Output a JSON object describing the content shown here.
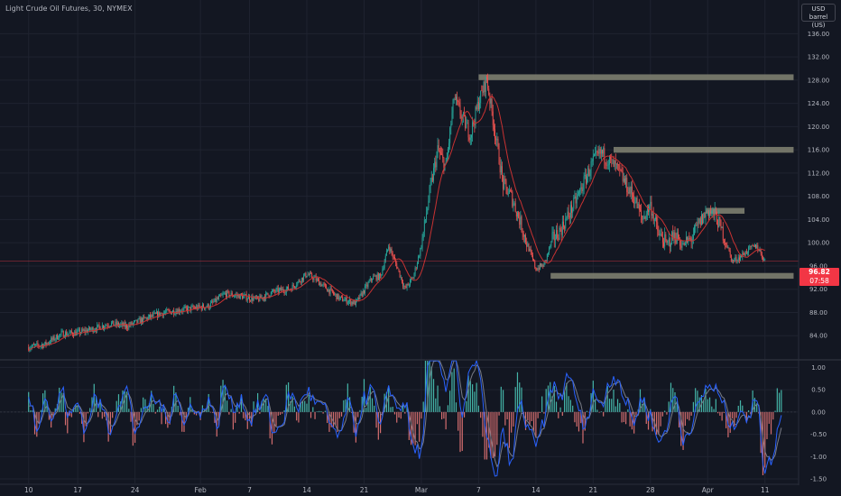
{
  "chart_title": "Light Crude Oil Futures, 30, NYMEX",
  "unit": {
    "currency": "USD",
    "measure": "barrel (US)"
  },
  "last_price": {
    "value": "96.82",
    "countdown": "07:58",
    "color": "#f23645"
  },
  "colors": {
    "background": "#131722",
    "candle_up": "#26a69a",
    "candle_down": "#ef5350",
    "moving_average": "#c83232",
    "zone": "#7d7e6f",
    "osc_fast": "#2962ff",
    "osc_slow": "#787b86",
    "hist_pos": "#4dd0c0",
    "hist_neg": "#f77c7c"
  },
  "chart_data": [
    {
      "type": "candlestick",
      "title": "Light Crude Oil Futures, 30, NYMEX",
      "timeframe": "30",
      "y_unit": "USD / barrel (US)",
      "ylim": [
        80,
        139
      ],
      "y_ticks": [
        84,
        88,
        92,
        96,
        100,
        104,
        108,
        112,
        116,
        120,
        124,
        128,
        132,
        136
      ],
      "y_tick_labels": [
        "84.00",
        "88.00",
        "92.00",
        "96.00",
        "100.00",
        "104.00",
        "108.00",
        "112.00",
        "116.00",
        "120.00",
        "124.00",
        "128.00",
        "132.00",
        "136.00"
      ],
      "x_ticks": [
        "10",
        "17",
        "24",
        "Feb",
        "7",
        "14",
        "21",
        "Mar",
        "7",
        "14",
        "21",
        "28",
        "Apr",
        "11"
      ],
      "x_tick_index": [
        0,
        6,
        13,
        21,
        27,
        34,
        41,
        48,
        55,
        62,
        69,
        76,
        83,
        90
      ],
      "x_index_range": [
        -3.5,
        94
      ],
      "close_series": {
        "index": [
          0,
          2,
          4,
          6,
          8,
          10,
          12,
          14,
          16,
          18,
          20,
          22,
          24,
          26,
          28,
          30,
          32,
          34,
          35,
          36,
          38,
          40,
          41,
          42,
          43,
          44,
          45,
          46,
          47,
          48,
          49,
          50,
          51,
          52,
          53,
          54,
          55,
          56,
          57,
          58,
          59,
          60,
          61,
          62,
          63,
          64,
          65,
          66,
          67,
          68,
          69,
          70,
          71,
          72,
          73,
          74,
          75,
          76,
          77,
          78,
          79,
          80,
          81,
          82,
          83,
          84,
          85,
          86,
          87,
          88,
          89,
          90
        ],
        "values": [
          82,
          82.5,
          84.3,
          84.5,
          85.2,
          86.1,
          85.6,
          86.8,
          87.8,
          88.3,
          88.7,
          89.1,
          91.2,
          90.8,
          90.2,
          91.6,
          92.1,
          94.6,
          93.8,
          92.6,
          90.4,
          89.6,
          91.8,
          94,
          94.2,
          99.5,
          96,
          92,
          94,
          99.5,
          108.5,
          116,
          113,
          125,
          121.5,
          118.6,
          124.2,
          128.2,
          119,
          110,
          108,
          104,
          99.5,
          95.5,
          96.2,
          100.5,
          102.2,
          104.8,
          107.6,
          110.8,
          114,
          115.5,
          114,
          112.6,
          110,
          107.8,
          104,
          106.5,
          101.4,
          99.8,
          101.4,
          99.6,
          100.7,
          103.4,
          105.6,
          104.6,
          101,
          96.8,
          97.6,
          98.8,
          99.5,
          96.82
        ]
      },
      "zones": [
        {
          "price": 128.5,
          "from_index": 55,
          "to_index": 93.5
        },
        {
          "price": 116,
          "from_index": 71.5,
          "to_index": 93.5
        },
        {
          "price": 105.5,
          "from_index": 82.8,
          "to_index": 87.5
        },
        {
          "price": 94.3,
          "from_index": 63.8,
          "to_index": 93.5
        }
      ],
      "last_price_line": 96.82
    },
    {
      "type": "oscillator",
      "ylim": [
        -1.6,
        1.15
      ],
      "y_ticks": [
        -1.5,
        -1,
        -0.5,
        0,
        0.5,
        1
      ],
      "y_tick_labels": [
        "-1.50",
        "-1.00",
        "-0.50",
        "0.00",
        "0.50",
        "1.00"
      ],
      "signal_series": {
        "index": [
          0,
          1,
          2,
          3,
          4,
          5,
          6,
          7,
          8,
          9,
          10,
          11,
          12,
          13,
          14,
          15,
          16,
          17,
          18,
          19,
          20,
          21,
          22,
          23,
          24,
          25,
          26,
          27,
          28,
          29,
          30,
          31,
          32,
          33,
          34,
          35,
          36,
          37,
          38,
          39,
          40,
          41,
          42,
          43,
          44,
          45,
          46,
          47,
          48,
          49,
          50,
          51,
          52,
          53,
          54,
          55,
          56,
          57,
          58,
          59,
          60,
          61,
          62,
          63,
          64,
          65,
          66,
          67,
          68,
          69,
          70,
          71,
          72,
          73,
          74,
          75,
          76,
          77,
          78,
          79,
          80,
          81,
          82,
          83,
          84,
          85,
          86,
          87,
          88,
          89,
          90,
          91,
          92
        ],
        "values": [
          0.4,
          -0.3,
          0.3,
          -0.2,
          0.5,
          -0.1,
          0.2,
          -0.4,
          0.3,
          0.1,
          -0.4,
          0.2,
          0.5,
          -0.4,
          -0.1,
          0.3,
          0.2,
          -0.2,
          0.5,
          -0.3,
          0.2,
          -0.1,
          0.3,
          -0.3,
          0.6,
          0.1,
          0.3,
          -0.2,
          0.1,
          0.3,
          -0.5,
          -0.2,
          0.4,
          0.1,
          0.5,
          0.2,
          0.1,
          -0.3,
          -0.6,
          0.2,
          -0.4,
          0.3,
          0.5,
          -0.4,
          0.6,
          0.1,
          0.2,
          -0.8,
          -0.9,
          1.3,
          1.2,
          0.6,
          1.5,
          -0.1,
          0.9,
          1.1,
          -0.6,
          -1.5,
          -0.5,
          -1.2,
          0.2,
          -0.3,
          -0.8,
          -0.2,
          0.6,
          0.3,
          0.9,
          0.2,
          -0.4,
          0.5,
          0.1,
          0.7,
          0.8,
          0.2,
          -0.2,
          0.3,
          -0.1,
          -0.7,
          -0.3,
          0.4,
          -0.6,
          -0.3,
          0.2,
          0.6,
          0.5,
          0.1,
          -0.4,
          0.1,
          -0.2,
          0.4,
          -1.3,
          -1.0,
          0.0
        ]
      },
      "fast_series_note_free": true
    }
  ]
}
